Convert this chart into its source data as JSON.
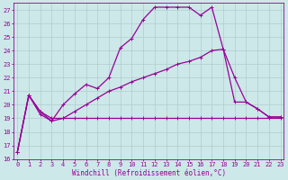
{
  "xlabel": "Windchill (Refroidissement éolien,°C)",
  "background_color": "#cce8e8",
  "grid_color": "#b0cccc",
  "line_color": "#990099",
  "xlim": [
    -0.3,
    23.3
  ],
  "ylim": [
    16,
    27.5
  ],
  "yticks": [
    16,
    17,
    18,
    19,
    20,
    21,
    22,
    23,
    24,
    25,
    26,
    27
  ],
  "xticks": [
    0,
    1,
    2,
    3,
    4,
    5,
    6,
    7,
    8,
    9,
    10,
    11,
    12,
    13,
    14,
    15,
    16,
    17,
    18,
    19,
    20,
    21,
    22,
    23
  ],
  "line1_x": [
    0,
    1,
    2,
    3,
    4,
    5,
    6,
    7,
    8,
    9,
    10,
    11,
    12,
    13,
    14,
    15,
    16,
    17,
    18,
    19,
    20,
    21,
    22,
    23
  ],
  "line1_y": [
    16.5,
    20.7,
    19.3,
    18.8,
    20.0,
    20.8,
    21.5,
    21.2,
    22.0,
    24.2,
    24.9,
    26.3,
    27.2,
    27.2,
    27.2,
    27.2,
    26.6,
    27.2,
    24.1,
    20.2,
    20.2,
    19.7,
    19.1,
    19.1
  ],
  "line2_x": [
    0,
    1,
    2,
    3,
    4,
    5,
    6,
    7,
    8,
    9,
    10,
    11,
    12,
    13,
    14,
    15,
    16,
    17,
    18,
    19,
    20,
    21,
    22,
    23
  ],
  "line2_y": [
    16.5,
    20.7,
    19.5,
    19.0,
    19.0,
    19.5,
    20.0,
    20.5,
    21.0,
    21.3,
    21.7,
    22.0,
    22.3,
    22.6,
    23.0,
    23.2,
    23.5,
    24.0,
    24.1,
    22.0,
    20.2,
    19.7,
    19.1,
    19.1
  ],
  "line3_x": [
    0,
    1,
    2,
    3,
    4,
    5,
    6,
    7,
    8,
    9,
    10,
    11,
    12,
    13,
    14,
    15,
    16,
    17,
    18,
    19,
    20,
    21,
    22,
    23
  ],
  "line3_y": [
    16.5,
    20.7,
    19.5,
    18.8,
    19.0,
    19.0,
    19.0,
    19.0,
    19.0,
    19.0,
    19.0,
    19.0,
    19.0,
    19.0,
    19.0,
    19.0,
    19.0,
    19.0,
    19.0,
    19.0,
    19.0,
    19.0,
    19.0,
    19.0
  ],
  "linewidth": 0.9,
  "marker": "+",
  "marker_size": 3.0,
  "marker_lw": 0.7,
  "tick_fontsize": 5.0,
  "xlabel_fontsize": 5.5
}
